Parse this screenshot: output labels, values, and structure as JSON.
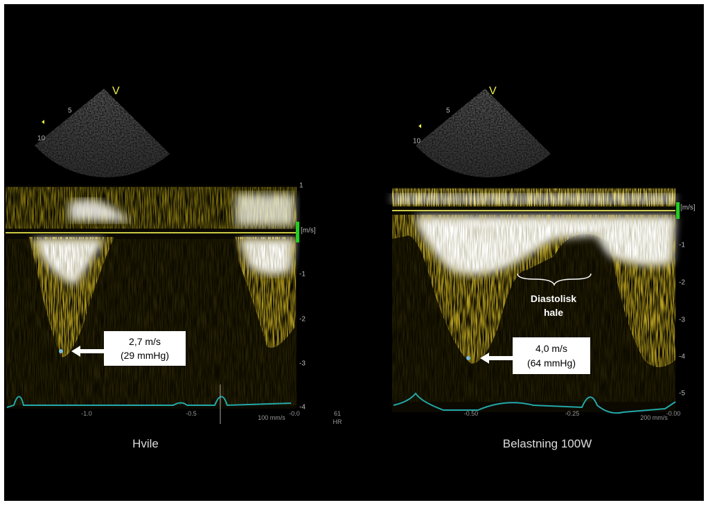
{
  "panels": [
    {
      "caption": "Hvile",
      "sector_marker": "V",
      "sector_depths": [
        "5",
        "10"
      ],
      "scale_unit": "[m/s]",
      "scale_labels": [
        "1",
        "-1",
        "-2",
        "-3",
        "-4"
      ],
      "time_labels": [
        "-1.0",
        "-0.5",
        "-0.0"
      ],
      "sweep": "100 mm/s",
      "heart_rate": [
        "61",
        "HR"
      ],
      "annotation": {
        "velocity": "2,7 m/s",
        "pressure": "(29 mmHg)"
      }
    },
    {
      "caption": "Belastning 100W",
      "sector_marker": "V",
      "sector_depths": [
        "5",
        "10"
      ],
      "scale_unit": "[m/s]",
      "scale_labels": [
        "-1",
        "-2",
        "-3",
        "-4",
        "-5"
      ],
      "time_labels": [
        "-0.50",
        "-0.25",
        "-0.00"
      ],
      "sweep": "200 mm/s",
      "annotation": {
        "velocity": "4,0 m/s",
        "pressure": "(64 mmHg)"
      },
      "bracket_label": [
        "Diastolisk",
        "hale"
      ]
    }
  ]
}
